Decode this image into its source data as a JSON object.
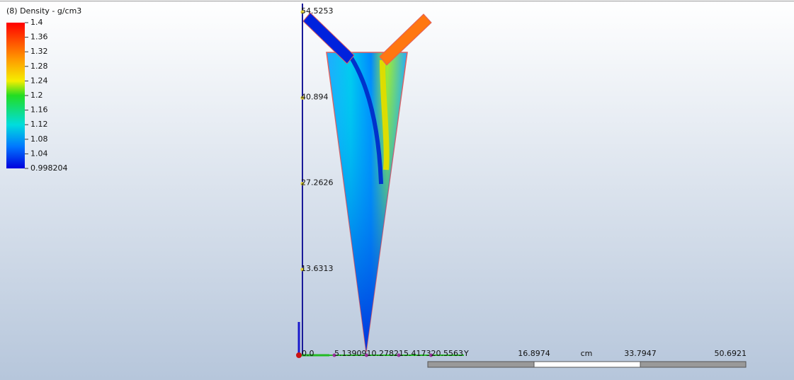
{
  "legend": {
    "title": "(8) Density - g/cm3",
    "labels": [
      "1.4",
      "1.36",
      "1.32",
      "1.28",
      "1.24",
      "1.2",
      "1.16",
      "1.12",
      "1.08",
      "1.04",
      "0.998204"
    ]
  },
  "vertical_axis": {
    "labels": [
      "54.5253",
      "40.894",
      "27.2626",
      "13.6313"
    ]
  },
  "horizontal_axis": {
    "origin": "0.0",
    "labels": [
      "5.13909",
      "10.2782",
      "15.4173",
      "20.5563"
    ],
    "name": "Y"
  },
  "scale_bar": {
    "labels": [
      "16.8974",
      "33.7947",
      "50.6921"
    ],
    "unit": "cm"
  }
}
